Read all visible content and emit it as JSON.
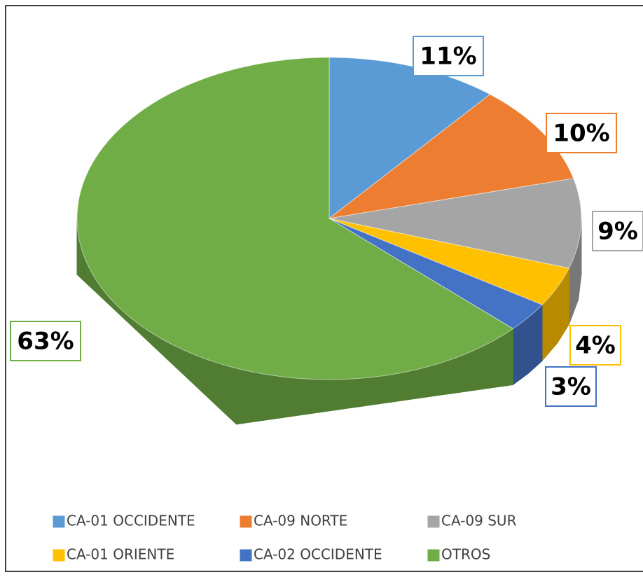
{
  "chart_data": {
    "type": "pie",
    "categories": [
      "CA-01 OCCIDENTE",
      "CA-09 NORTE",
      "CA-09 SUR",
      "CA-01 ORIENTE",
      "CA-02 OCCIDENTE",
      "OTROS"
    ],
    "values": [
      11,
      10,
      9,
      4,
      3,
      63
    ],
    "value_labels": [
      "11%",
      "10%",
      "9%",
      "4%",
      "3%",
      "63%"
    ],
    "colors": [
      "#5b9bd5",
      "#ed7d31",
      "#a5a5a5",
      "#ffc000",
      "#4472c4",
      "#70ad47"
    ]
  }
}
